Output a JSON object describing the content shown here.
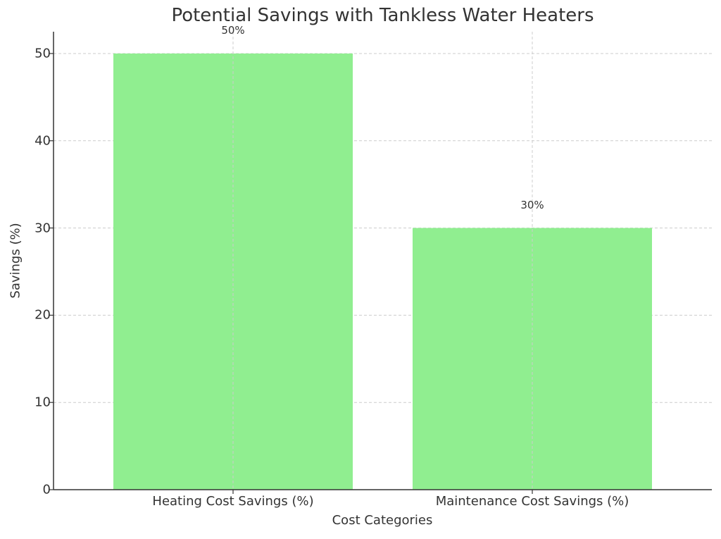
{
  "chart_data": {
    "type": "bar",
    "title": "Potential Savings with Tankless Water Heaters",
    "xlabel": "Cost Categories",
    "ylabel": "Savings (%)",
    "categories": [
      "Heating Cost Savings (%)",
      "Maintenance Cost Savings (%)"
    ],
    "values": [
      50,
      30
    ],
    "data_labels": [
      "50%",
      "30%"
    ],
    "ylim": [
      0,
      52.5
    ],
    "yticks": [
      0,
      10,
      20,
      30,
      40,
      50
    ],
    "ytick_labels": [
      "0",
      "10",
      "20",
      "30",
      "40",
      "50"
    ],
    "grid": true,
    "grid_style": "dashed",
    "legend": null,
    "bar_color": "#90EE90"
  },
  "colors": {
    "bar": "#90EE90",
    "text": "#333333",
    "grid": "#cccccc",
    "axis": "#333333"
  }
}
